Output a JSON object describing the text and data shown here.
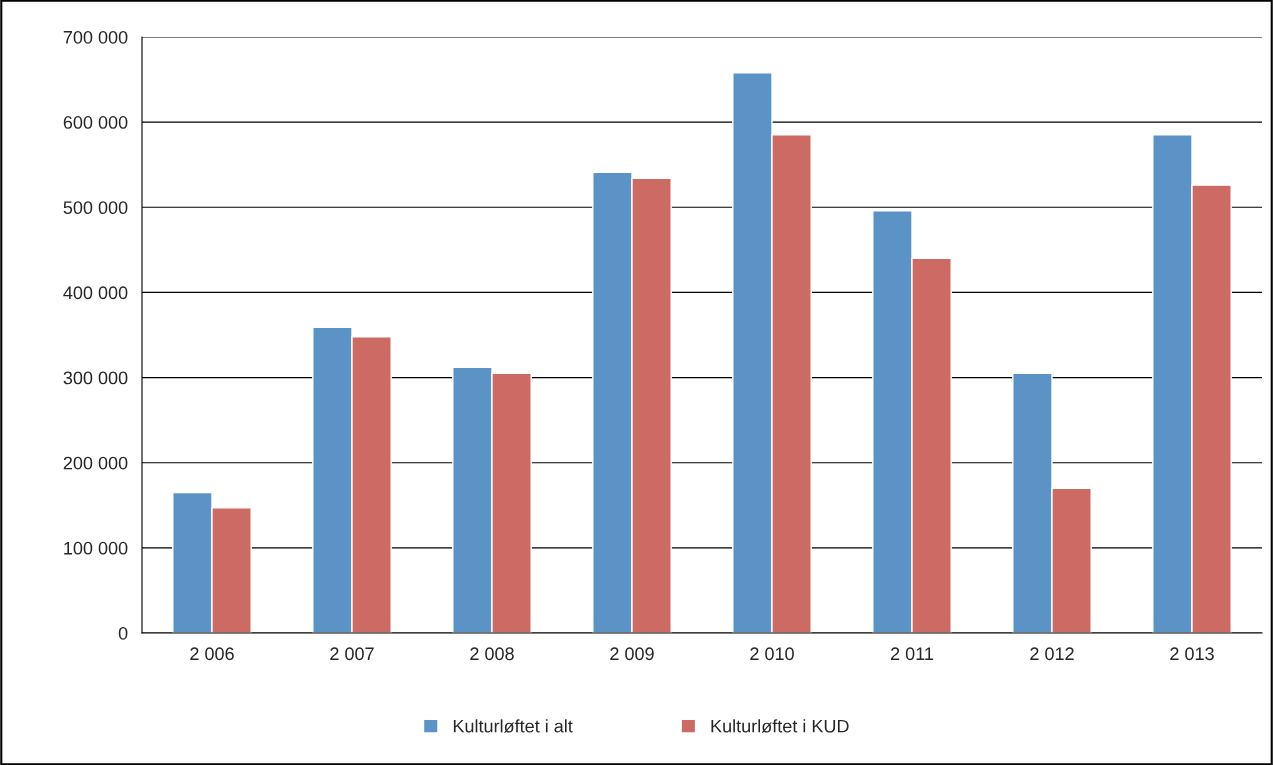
{
  "chart_data": {
    "type": "bar",
    "categories": [
      "2 006",
      "2 007",
      "2 008",
      "2 009",
      "2 010",
      "2 011",
      "2 012",
      "2 013"
    ],
    "series": [
      {
        "name": "Kulturløftet i alt",
        "color": "#5b93c7",
        "values": [
          165000,
          359000,
          312000,
          541000,
          658000,
          496000,
          305000,
          585000
        ]
      },
      {
        "name": "Kulturløftet i KUD",
        "color": "#cc6a64",
        "values": [
          147000,
          348000,
          305000,
          534000,
          585000,
          440000,
          170000,
          526000
        ]
      }
    ],
    "ylim": [
      0,
      700000
    ],
    "yticks": [
      {
        "value": 0,
        "label": "0"
      },
      {
        "value": 100000,
        "label": "100 000"
      },
      {
        "value": 200000,
        "label": "200 000"
      },
      {
        "value": 300000,
        "label": "300 000"
      },
      {
        "value": 400000,
        "label": "400 000"
      },
      {
        "value": 500000,
        "label": "500 000"
      },
      {
        "value": 600000,
        "label": "600 000"
      },
      {
        "value": 700000,
        "label": "700 000"
      }
    ],
    "grid": "y",
    "legend": "bottom"
  }
}
